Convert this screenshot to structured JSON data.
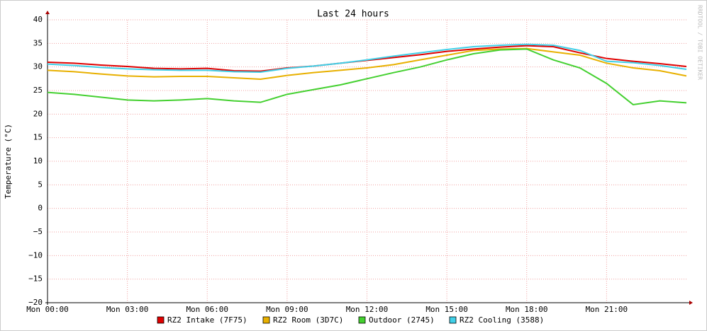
{
  "chart_data": {
    "type": "line",
    "title": "Last 24 hours",
    "y_label": "Temperature (°C)",
    "watermark": "RRDTOOL / TOBI OETIKER",
    "x": [
      0,
      1,
      2,
      3,
      4,
      5,
      6,
      7,
      8,
      9,
      10,
      11,
      12,
      13,
      14,
      15,
      16,
      17,
      18,
      19,
      20,
      21,
      22,
      23,
      24
    ],
    "xlim": [
      0,
      24
    ],
    "xticks": [
      {
        "value": 0,
        "label": "Mon 00:00"
      },
      {
        "value": 3,
        "label": "Mon 03:00"
      },
      {
        "value": 6,
        "label": "Mon 06:00"
      },
      {
        "value": 9,
        "label": "Mon 09:00"
      },
      {
        "value": 12,
        "label": "Mon 12:00"
      },
      {
        "value": 15,
        "label": "Mon 15:00"
      },
      {
        "value": 18,
        "label": "Mon 18:00"
      },
      {
        "value": 21,
        "label": "Mon 21:00"
      }
    ],
    "ylim": [
      -20,
      40
    ],
    "yticks": [
      40,
      35,
      30,
      25,
      20,
      15,
      10,
      5,
      0,
      {
        "value": -5,
        "label": "−5"
      },
      {
        "value": -10,
        "label": "−10"
      },
      {
        "value": -15,
        "label": "−15"
      },
      {
        "value": -20,
        "label": "−20"
      }
    ],
    "grid": true,
    "series": [
      {
        "name": "RZ2 Intake (7F75)",
        "color": "#e00000",
        "values": [
          31,
          30.8,
          30.4,
          30.1,
          29.7,
          29.6,
          29.7,
          29.2,
          29.1,
          29.8,
          30.2,
          30.8,
          31.4,
          32,
          32.6,
          33.3,
          33.8,
          34.2,
          34.5,
          34.3,
          33,
          31.8,
          31.2,
          30.7,
          30.1
        ]
      },
      {
        "name": "RZ2 Room (3D7C)",
        "color": "#e8b000",
        "values": [
          29.3,
          29,
          28.5,
          28.1,
          27.9,
          28,
          28,
          27.7,
          27.4,
          28.2,
          28.8,
          29.3,
          29.8,
          30.5,
          31.5,
          32.5,
          33.5,
          33.8,
          33.9,
          33.2,
          32.5,
          30.8,
          29.8,
          29.2,
          28.1
        ]
      },
      {
        "name": "Outdoor (2745)",
        "color": "#44d030",
        "values": [
          24.6,
          24.2,
          23.6,
          23,
          22.8,
          23,
          23.3,
          22.8,
          22.5,
          24.2,
          25.2,
          26.2,
          27.5,
          28.8,
          30,
          31.5,
          32.8,
          33.6,
          33.8,
          31.5,
          29.8,
          26.5,
          22,
          22.8,
          22.4
        ]
      },
      {
        "name": "RZ2 Cooling (3588)",
        "color": "#40d0e8",
        "values": [
          30.6,
          30.3,
          29.9,
          29.6,
          29.4,
          29.3,
          29.3,
          29,
          28.9,
          29.7,
          30.2,
          30.8,
          31.5,
          32.3,
          33,
          33.7,
          34.3,
          34.6,
          34.8,
          34.6,
          33.5,
          31.2,
          30.9,
          30.3,
          29.5
        ]
      }
    ]
  }
}
